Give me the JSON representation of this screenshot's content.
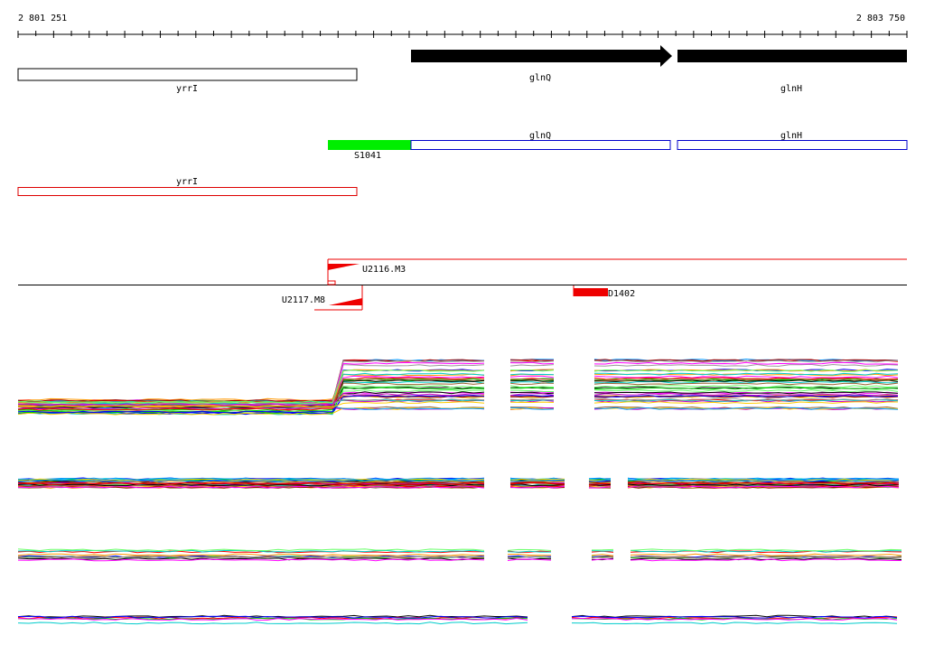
{
  "ruler": {
    "start_label": "2 801 251",
    "end_label": "2 803 750"
  },
  "genes_track": [
    {
      "name": "yrrI",
      "style": "outline",
      "strand": "none"
    },
    {
      "name": "glnQ",
      "style": "filled",
      "strand": "+"
    },
    {
      "name": "glnH",
      "style": "filled",
      "strand": "+"
    }
  ],
  "cds_track": [
    {
      "name": "S1041",
      "color": "#00ee00",
      "style": "filled"
    },
    {
      "name": "glnQ",
      "color": "#0000cc",
      "style": "outline"
    },
    {
      "name": "glnH",
      "color": "#0000cc",
      "style": "outline"
    }
  ],
  "antisense_track": [
    {
      "name": "yrrI",
      "color": "#dd0000",
      "style": "outline"
    }
  ],
  "features": [
    {
      "name": "U2116.M3",
      "color": "#ee0000"
    },
    {
      "name": "U2117.M8",
      "color": "#ee0000"
    },
    {
      "name": "D1402",
      "color": "#ee0000"
    }
  ],
  "colors": {
    "profile_palette": [
      "#000000",
      "#ff0000",
      "#00cc00",
      "#0000ff",
      "#ff00ff",
      "#00cccc",
      "#ff9900",
      "#996633",
      "#999999",
      "#66ff66",
      "#cc00cc",
      "#ffcc00",
      "#0099ff",
      "#990000"
    ]
  }
}
